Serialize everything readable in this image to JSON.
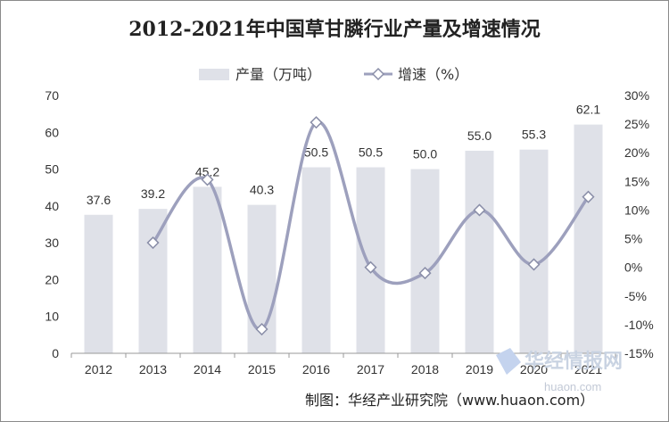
{
  "chart_data": {
    "type": "bar+line",
    "title": "2012-2021年中国草甘膦行业产量及增速情况",
    "categories": [
      "2012",
      "2013",
      "2014",
      "2015",
      "2016",
      "2017",
      "2018",
      "2019",
      "2020",
      "2021"
    ],
    "series": [
      {
        "name": "产量（万吨）",
        "type": "bar",
        "axis": "left",
        "color": "#dfe1e8",
        "values": [
          37.6,
          39.2,
          45.2,
          40.3,
          50.5,
          50.5,
          50.0,
          55.0,
          55.3,
          62.1
        ],
        "labels": [
          "37.6",
          "39.2",
          "45.2",
          "40.3",
          "50.5",
          "50.5",
          "50.0",
          "55.0",
          "55.3",
          "62.1"
        ]
      },
      {
        "name": "增速（%）",
        "type": "line",
        "smooth": true,
        "marker": "diamond",
        "axis": "right",
        "color": "#9da0bd",
        "values": [
          null,
          4.3,
          15.3,
          -10.8,
          25.3,
          0.0,
          -1.0,
          10.0,
          0.5,
          12.3
        ]
      }
    ],
    "left_axis": {
      "ylim": [
        0,
        70
      ],
      "ticks": [
        "0",
        "10",
        "20",
        "30",
        "40",
        "50",
        "60",
        "70"
      ]
    },
    "right_axis": {
      "ylim": [
        -15,
        30
      ],
      "ticks": [
        "-15%",
        "-10%",
        "-5%",
        "0%",
        "5%",
        "10%",
        "15%",
        "20%",
        "25%",
        "30%"
      ]
    },
    "legend": "top-center",
    "grid": false
  },
  "source": "制图：华经产业研究院（www.huaon.com）",
  "watermark": {
    "brand": "华经情报网",
    "url": "huaon.com"
  }
}
